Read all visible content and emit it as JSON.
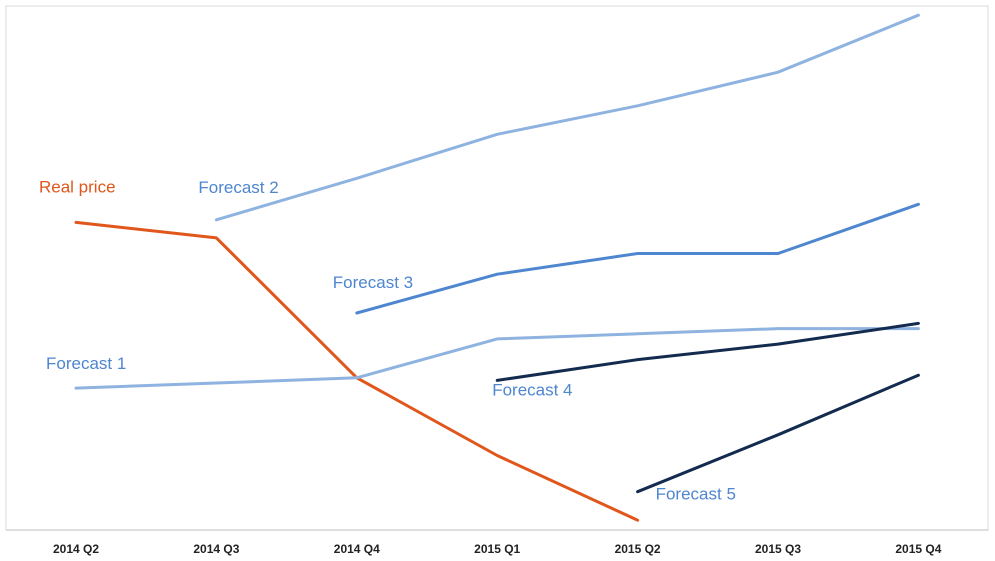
{
  "chart_data": {
    "type": "line",
    "title": "",
    "xlabel": "",
    "ylabel": "",
    "categories": [
      "2014 Q2",
      "2014 Q3",
      "2014 Q4",
      "2015 Q1",
      "2015 Q2",
      "2015 Q3",
      "2015 Q4"
    ],
    "ylim": [
      0,
      100
    ],
    "grid": false,
    "legend": "none",
    "series": [
      {
        "name": "Real price",
        "color": "#E0561B",
        "values": [
          59,
          56,
          29,
          14,
          1.5,
          null,
          null
        ]
      },
      {
        "name": "Forecast 1",
        "color": "#8FB3E0",
        "values": [
          27,
          28,
          29,
          36.5,
          37.5,
          38.5,
          38.5
        ]
      },
      {
        "name": "Forecast 2",
        "color": "#8FB3E0",
        "values": [
          null,
          59.5,
          67.5,
          76,
          81.5,
          88,
          99
        ]
      },
      {
        "name": "Forecast 3",
        "color": "#4E86CF",
        "values": [
          null,
          null,
          41.5,
          49,
          53,
          53,
          62.5
        ]
      },
      {
        "name": "Forecast 4",
        "color": "#132B4E",
        "values": [
          null,
          null,
          null,
          28.5,
          32.5,
          35.5,
          39.5
        ]
      },
      {
        "name": "Forecast 5",
        "color": "#132B4E",
        "values": [
          null,
          null,
          null,
          null,
          7,
          18,
          29.5
        ]
      }
    ]
  }
}
